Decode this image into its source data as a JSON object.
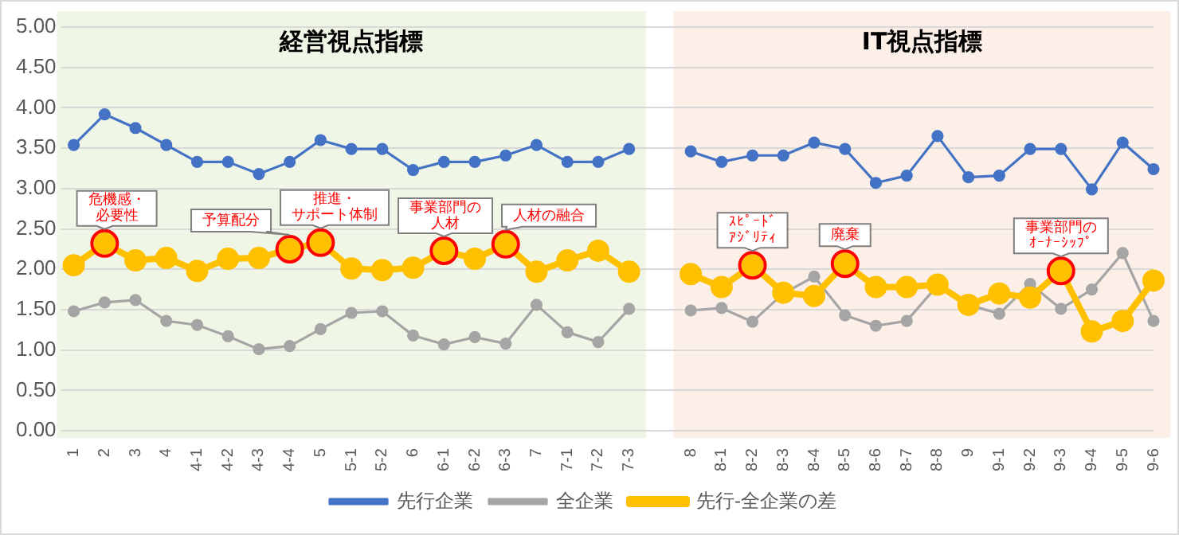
{
  "chart_data": {
    "type": "line",
    "categories": [
      "1",
      "2",
      "3",
      "4",
      "4-1",
      "4-2",
      "4-3",
      "4-4",
      "5",
      "5-1",
      "5-2",
      "6",
      "6-1",
      "6-2",
      "6-3",
      "7",
      "7-1",
      "7-2",
      "7-3",
      null,
      "8",
      "8-1",
      "8-2",
      "8-3",
      "8-4",
      "8-5",
      "8-6",
      "8-7",
      "8-8",
      "9",
      "9-1",
      "9-2",
      "9-3",
      "9-4",
      "9-5",
      "9-6"
    ],
    "series": [
      {
        "name": "先行企業",
        "color": "#4472c4",
        "values": [
          3.54,
          3.92,
          3.75,
          3.54,
          3.33,
          3.33,
          3.18,
          3.33,
          3.6,
          3.49,
          3.49,
          3.23,
          3.33,
          3.33,
          3.41,
          3.54,
          3.33,
          3.33,
          3.49,
          null,
          3.46,
          3.33,
          3.41,
          3.41,
          3.57,
          3.49,
          3.07,
          3.16,
          3.65,
          3.14,
          3.16,
          3.49,
          3.49,
          2.99,
          3.57,
          3.24
        ]
      },
      {
        "name": "全企業",
        "color": "#a5a5a5",
        "values": [
          1.48,
          1.59,
          1.62,
          1.36,
          1.31,
          1.17,
          1.01,
          1.05,
          1.26,
          1.46,
          1.48,
          1.18,
          1.07,
          1.16,
          1.08,
          1.56,
          1.22,
          1.1,
          1.51,
          null,
          1.49,
          1.52,
          1.35,
          1.7,
          1.91,
          1.43,
          1.3,
          1.36,
          1.8,
          1.56,
          1.45,
          1.82,
          1.51,
          1.75,
          2.2,
          1.36
        ]
      },
      {
        "name": "先行-全企業の差",
        "color": "#ffc000",
        "values": [
          2.05,
          2.32,
          2.11,
          2.14,
          1.98,
          2.13,
          2.14,
          2.25,
          2.33,
          2.01,
          1.99,
          2.02,
          2.23,
          2.13,
          2.31,
          1.97,
          2.11,
          2.23,
          1.97,
          null,
          1.94,
          1.78,
          2.05,
          1.71,
          1.67,
          2.07,
          1.78,
          1.78,
          1.81,
          1.56,
          1.7,
          1.65,
          1.98,
          1.23,
          1.36,
          1.86
        ]
      }
    ],
    "ylim": [
      0,
      5
    ],
    "yticks": [
      {
        "value": 0,
        "label": "0.00"
      },
      {
        "value": 0.5,
        "label": "0.50"
      },
      {
        "value": 1,
        "label": "1.00"
      },
      {
        "value": 1.5,
        "label": "1.50"
      },
      {
        "value": 2,
        "label": "2.00"
      },
      {
        "value": 2.5,
        "label": "2.50"
      },
      {
        "value": 3,
        "label": "3.00"
      },
      {
        "value": 3.5,
        "label": "3.50"
      },
      {
        "value": 4,
        "label": "4.00"
      },
      {
        "value": 4.5,
        "label": "4.50"
      },
      {
        "value": 5,
        "label": "5.00"
      }
    ],
    "grid": "y",
    "legend": "bottom",
    "marker": "circle",
    "bands": [
      {
        "axis": "x",
        "from": "1",
        "to": "7-3",
        "label": "経営視点指標",
        "color": "#eff6e6"
      },
      {
        "axis": "x",
        "from": "8",
        "to": "9-6",
        "label": "IT視点指標",
        "color": "#fcefe8"
      }
    ],
    "annotations": [
      {
        "text": "危機感・必要性",
        "x": "2",
        "y": 2.32
      },
      {
        "text": "予算配分",
        "x": "4-4",
        "y": 2.25
      },
      {
        "text": "推進・サポート体制",
        "x": "5",
        "y": 2.33
      },
      {
        "text": "事業部門の人材",
        "x": "6-1",
        "y": 2.23
      },
      {
        "text": "人材の融合",
        "x": "6-3",
        "y": 2.31
      },
      {
        "text": "ｽﾋﾟｰﾄﾞｱｼﾞﾘﾃｨ",
        "x": "8-2",
        "y": 2.05
      },
      {
        "text": "廃棄",
        "x": "8-5",
        "y": 2.07
      },
      {
        "text": "事業部門のｵｰﾅｰｼｯﾌﾟ",
        "x": "9-3",
        "y": 1.98
      }
    ]
  }
}
